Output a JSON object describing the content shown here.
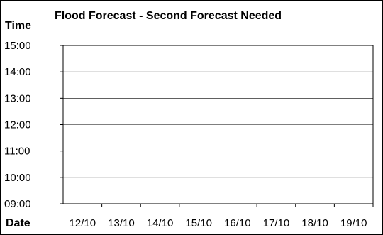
{
  "chart_data": {
    "type": "line",
    "title": "Flood Forecast - Second Forecast Needed",
    "ylabel": "Time",
    "xlabel": "Date",
    "x_categories": [
      "12/10",
      "13/10",
      "14/10",
      "15/10",
      "16/10",
      "17/10",
      "18/10",
      "19/10"
    ],
    "y_ticks": [
      "15:00",
      "14:00",
      "13:00",
      "12:00",
      "11:00",
      "10:00",
      "09:00"
    ],
    "ylim": [
      "09:00",
      "15:00"
    ],
    "series": [],
    "grid": true,
    "legend": "none"
  }
}
